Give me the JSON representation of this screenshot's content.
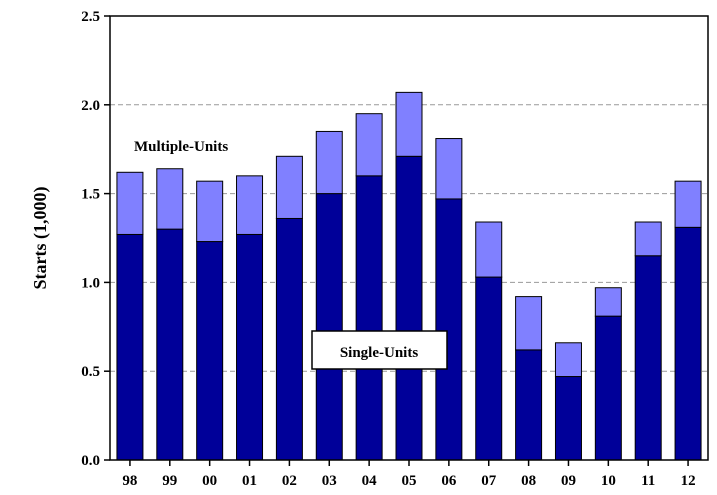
{
  "chart_data": {
    "type": "bar",
    "stacked": true,
    "categories": [
      "98",
      "99",
      "00",
      "01",
      "02",
      "03",
      "04",
      "05",
      "06",
      "07",
      "08",
      "09",
      "10",
      "11",
      "12"
    ],
    "series": [
      {
        "name": "Single-Units",
        "color": "#000099",
        "values": [
          1.27,
          1.3,
          1.23,
          1.27,
          1.36,
          1.5,
          1.6,
          1.71,
          1.47,
          1.03,
          0.62,
          0.47,
          0.81,
          1.15,
          1.31
        ]
      },
      {
        "name": "Multiple-Units",
        "color": "#8080ff",
        "values": [
          0.35,
          0.34,
          0.34,
          0.33,
          0.35,
          0.35,
          0.35,
          0.36,
          0.34,
          0.31,
          0.3,
          0.19,
          0.16,
          0.19,
          0.26
        ]
      }
    ],
    "title": "",
    "xlabel": "",
    "ylabel": "Starts (1,000)",
    "ylim": [
      0,
      2.5
    ],
    "yticks": [
      "0.0",
      "0.5",
      "1.0",
      "1.5",
      "2.0",
      "2.5"
    ],
    "grid": "horizontal-dashed",
    "annotations": {
      "multiple_units": "Multiple-Units",
      "single_units": "Single-Units"
    }
  }
}
